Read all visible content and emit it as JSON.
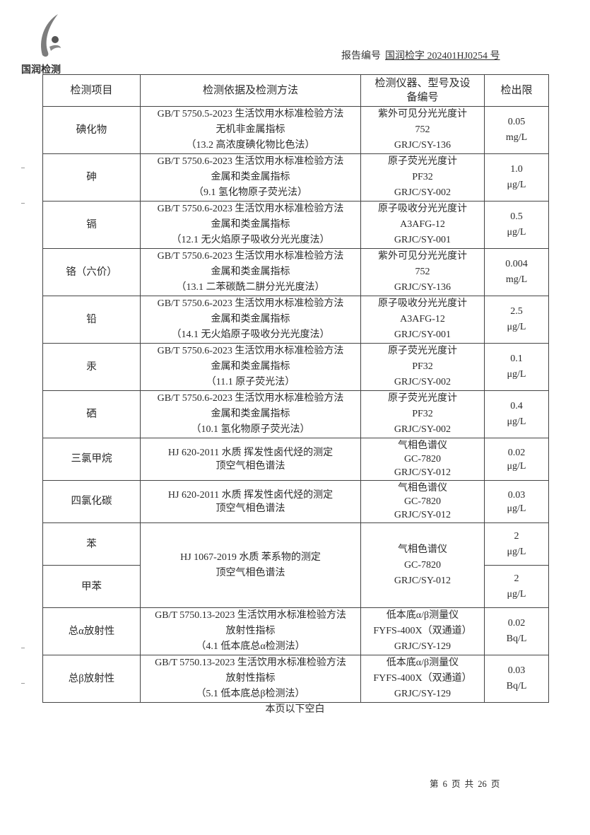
{
  "header": {
    "logo_text": "国润检测",
    "report_no_label": "报告编号",
    "report_no_value": "国润检字 202401HJ0254 号"
  },
  "table": {
    "columns": [
      "检测项目",
      "检测依据及检测方法",
      "检测仪器、型号及设备编号",
      "检出限"
    ],
    "rows": [
      {
        "item": "碘化物",
        "method": [
          "GB/T 5750.5-2023 生活饮用水标准检验方法",
          "无机非金属指标",
          "（13.2 高浓度碘化物比色法）"
        ],
        "instrument": [
          "紫外可见分光光度计",
          "752",
          "GRJC/SY-136"
        ],
        "limit": [
          "0.05",
          "mg/L"
        ]
      },
      {
        "item": "砷",
        "method": [
          "GB/T 5750.6-2023 生活饮用水标准检验方法",
          "金属和类金属指标",
          "（9.1 氢化物原子荧光法）"
        ],
        "instrument": [
          "原子荧光光度计",
          "PF32",
          "GRJC/SY-002"
        ],
        "limit": [
          "1.0",
          "μg/L"
        ]
      },
      {
        "item": "镉",
        "method": [
          "GB/T 5750.6-2023 生活饮用水标准检验方法",
          "金属和类金属指标",
          "（12.1 无火焰原子吸收分光光度法）"
        ],
        "instrument": [
          "原子吸收分光光度计",
          "A3AFG-12",
          "GRJC/SY-001"
        ],
        "limit": [
          "0.5",
          "μg/L"
        ]
      },
      {
        "item": "铬（六价）",
        "method": [
          "GB/T 5750.6-2023 生活饮用水标准检验方法",
          "金属和类金属指标",
          "（13.1 二苯碳酰二肼分光光度法）"
        ],
        "instrument": [
          "紫外可见分光光度计",
          "752",
          "GRJC/SY-136"
        ],
        "limit": [
          "0.004",
          "mg/L"
        ]
      },
      {
        "item": "铅",
        "method": [
          "GB/T 5750.6-2023 生活饮用水标准检验方法",
          "金属和类金属指标",
          "（14.1 无火焰原子吸收分光光度法）"
        ],
        "instrument": [
          "原子吸收分光光度计",
          "A3AFG-12",
          "GRJC/SY-001"
        ],
        "limit": [
          "2.5",
          "μg/L"
        ]
      },
      {
        "item": "汞",
        "method": [
          "GB/T 5750.6-2023 生活饮用水标准检验方法",
          "金属和类金属指标",
          "（11.1 原子荧光法）"
        ],
        "instrument": [
          "原子荧光光度计",
          "PF32",
          "GRJC/SY-002"
        ],
        "limit": [
          "0.1",
          "μg/L"
        ]
      },
      {
        "item": "硒",
        "method": [
          "GB/T 5750.6-2023 生活饮用水标准检验方法",
          "金属和类金属指标",
          "（10.1 氢化物原子荧光法）"
        ],
        "instrument": [
          "原子荧光光度计",
          "PF32",
          "GRJC/SY-002"
        ],
        "limit": [
          "0.4",
          "μg/L"
        ]
      },
      {
        "item": "三氯甲烷",
        "method": [
          "HJ 620-2011 水质 挥发性卤代烃的测定",
          "顶空气相色谱法"
        ],
        "instrument": [
          "气相色谱仪",
          "GC-7820",
          "GRJC/SY-012"
        ],
        "limit": [
          "0.02",
          "μg/L"
        ],
        "tight": true
      },
      {
        "item": "四氯化碳",
        "method": [
          "HJ 620-2011 水质 挥发性卤代烃的测定",
          "顶空气相色谱法"
        ],
        "instrument": [
          "气相色谱仪",
          "GC-7820",
          "GRJC/SY-012"
        ],
        "limit": [
          "0.03",
          "μg/L"
        ],
        "tight": true
      },
      {
        "item": "苯",
        "method": [
          "HJ 1067-2019 水质 苯系物的测定",
          "顶空气相色谱法"
        ],
        "instrument": [
          "气相色谱仪",
          "GC-7820",
          "GRJC/SY-012"
        ],
        "limit": [
          "2",
          "μg/L"
        ],
        "span": 2
      },
      {
        "item": "甲苯",
        "limit": [
          "2",
          "μg/L"
        ],
        "merged": true
      },
      {
        "item": "总α放射性",
        "method": [
          "GB/T 5750.13-2023 生活饮用水标准检验方法",
          "放射性指标",
          "（4.1 低本底总α检测法）"
        ],
        "instrument": [
          "低本底α/β测量仪",
          "FYFS-400X（双通道）",
          "GRJC/SY-129"
        ],
        "limit": [
          "0.02",
          "Bq/L"
        ]
      },
      {
        "item": "总β放射性",
        "method": [
          "GB/T 5750.13-2023 生活饮用水标准检验方法",
          "放射性指标",
          "（5.1 低本底总β检测法）"
        ],
        "instrument": [
          "低本底α/β测量仪",
          "FYFS-400X（双通道）",
          "GRJC/SY-129"
        ],
        "limit": [
          "0.03",
          "Bq/L"
        ]
      }
    ]
  },
  "footer": {
    "blank_note": "本页以下空白",
    "page_indicator": "第 6 页 共 26 页"
  }
}
